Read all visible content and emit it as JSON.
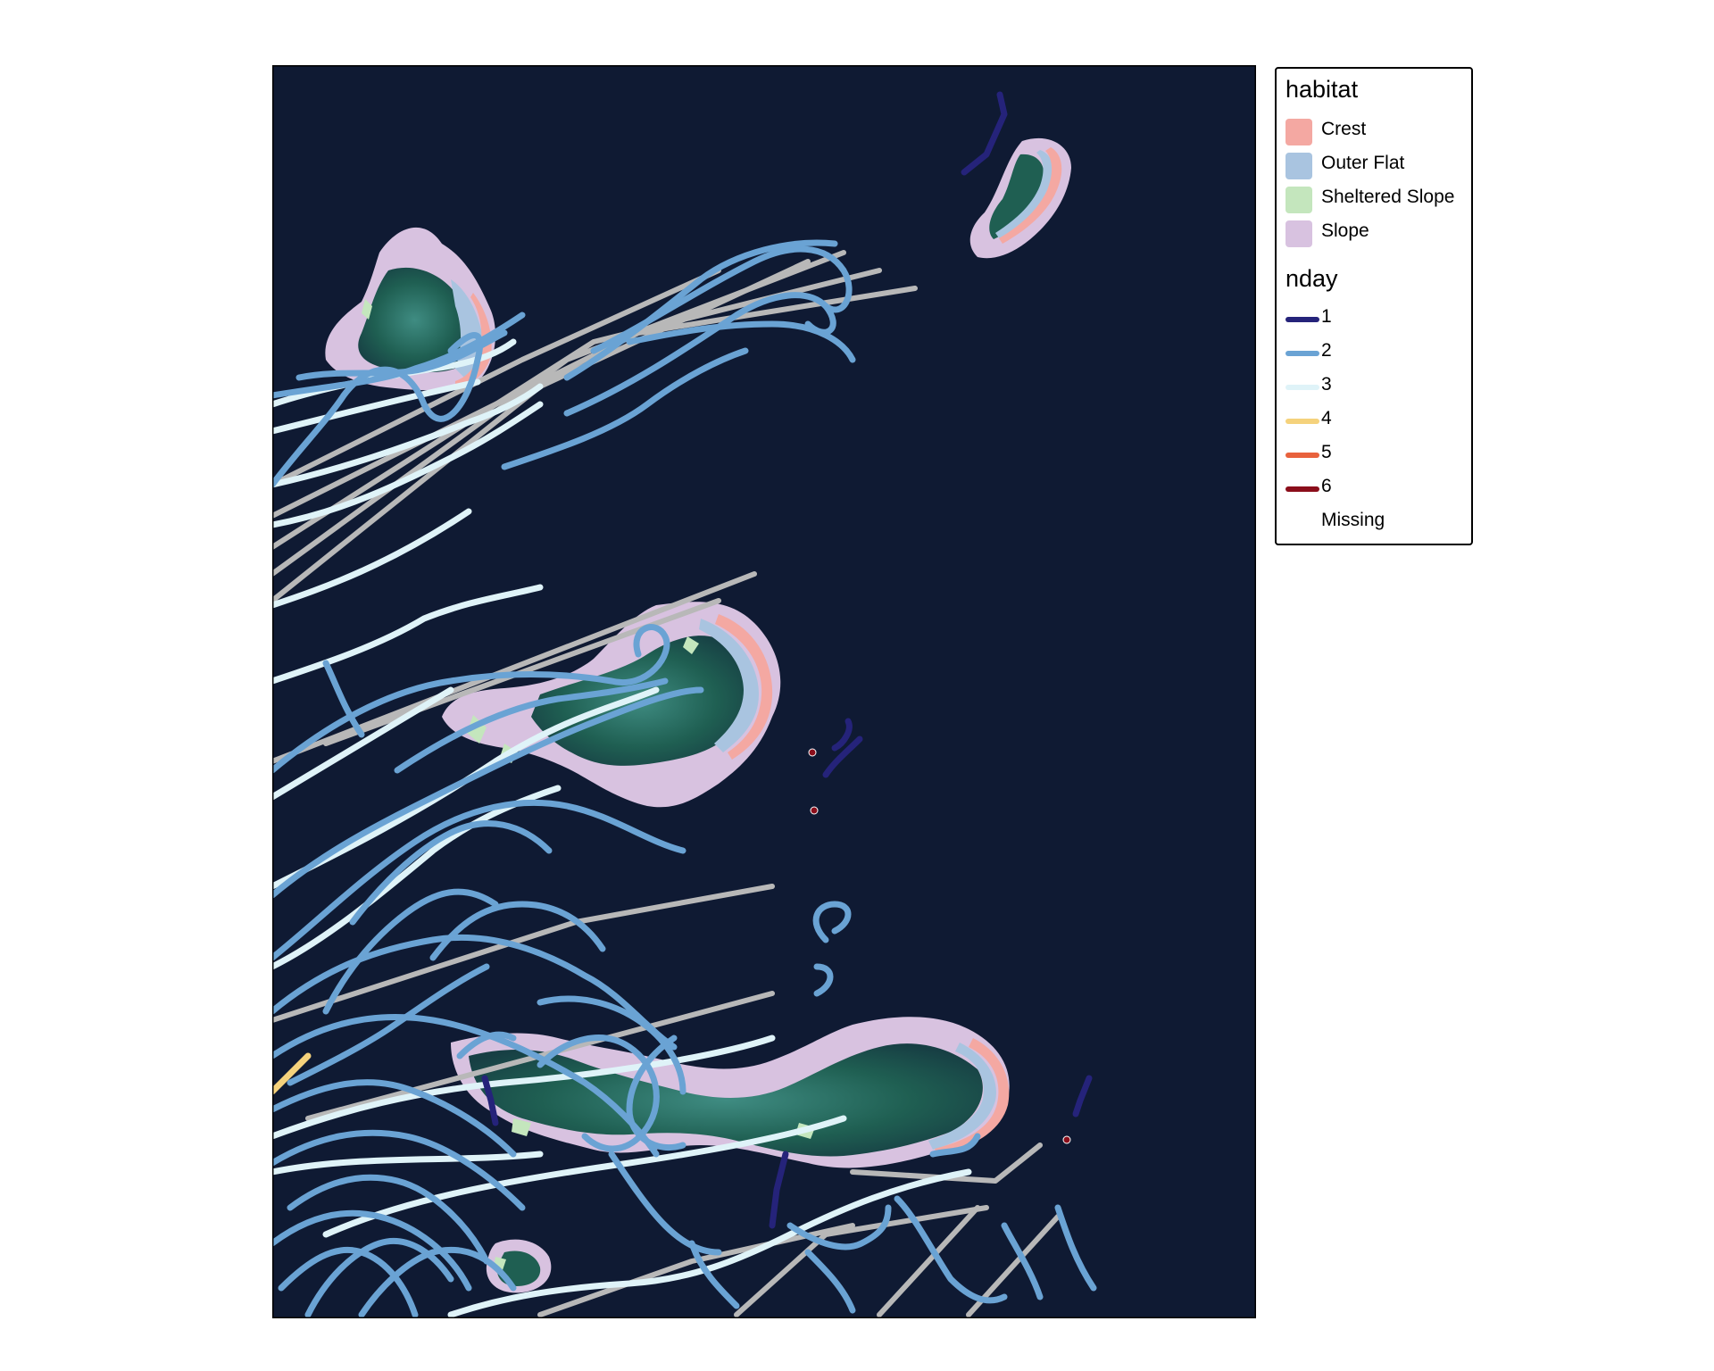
{
  "map": {
    "background_color": "#0f1a33",
    "track_colors": {
      "light": "#dff3f8",
      "blue": "#6aa3d4",
      "gray": "#b8b8b8",
      "navy": "#25237a",
      "yellow": "#f5d27c",
      "dark_red": "#8b0e1b"
    },
    "habitat_colors": {
      "Crest": "#f4a8a2",
      "Outer Flat": "#a9c4e0",
      "Sheltered Slope": "#c4e6bd",
      "Slope": "#d8c2e0",
      "lagoon": "#1f5f52"
    }
  },
  "legend": {
    "habitat_title": "habitat",
    "habitat_items": [
      {
        "label": "Crest",
        "color": "#f4a8a2"
      },
      {
        "label": "Outer Flat",
        "color": "#a9c4e0"
      },
      {
        "label": "Sheltered Slope",
        "color": "#c4e6bd"
      },
      {
        "label": "Slope",
        "color": "#d8c2e0"
      }
    ],
    "nday_title": "nday",
    "nday_items": [
      {
        "label": "1",
        "color": "#25237a"
      },
      {
        "label": "2",
        "color": "#6aa3d4"
      },
      {
        "label": "3",
        "color": "#dff3f8"
      },
      {
        "label": "4",
        "color": "#f5d27c"
      },
      {
        "label": "5",
        "color": "#e8623d"
      },
      {
        "label": "6",
        "color": "#8b0e1b"
      },
      {
        "label": "Missing",
        "color": ""
      }
    ]
  }
}
